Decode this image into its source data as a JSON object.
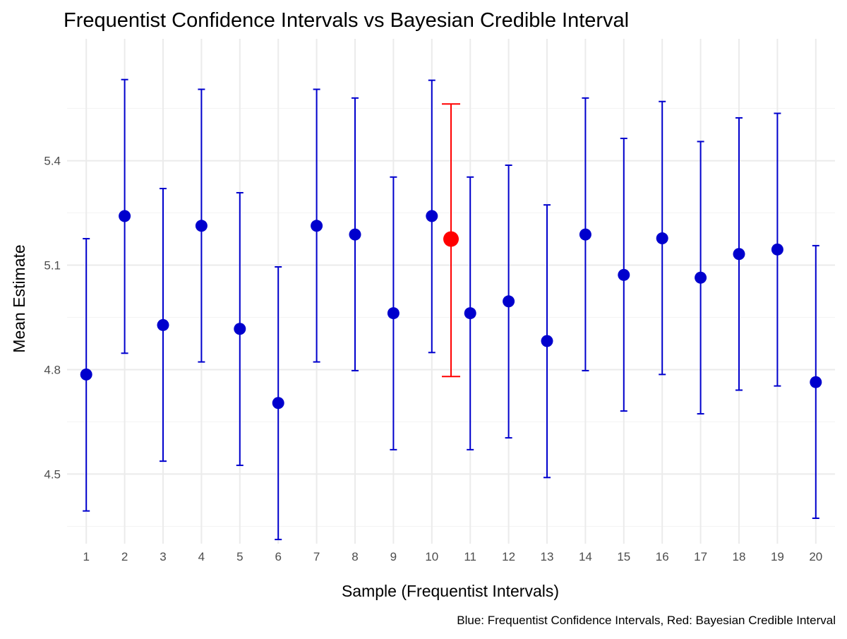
{
  "chart_data": {
    "type": "scatter",
    "title": "Frequentist Confidence Intervals vs Bayesian Credible Interval",
    "xlabel": "Sample (Frequentist Intervals)",
    "ylabel": "Mean Estimate",
    "caption": "Blue: Frequentist Confidence Intervals, Red: Bayesian Credible Interval",
    "xlim": [
      0.5,
      20.5
    ],
    "ylim": [
      4.3,
      5.75
    ],
    "x_ticks": [
      1,
      2,
      3,
      4,
      5,
      6,
      7,
      8,
      9,
      10,
      11,
      12,
      13,
      14,
      15,
      16,
      17,
      18,
      19,
      20
    ],
    "y_ticks": [
      4.5,
      4.8,
      5.1,
      5.4
    ],
    "grid": true,
    "series": [
      {
        "color": "#0000cd",
        "points": [
          {
            "x": 1,
            "y": 4.786,
            "lower": 4.394,
            "upper": 5.176
          },
          {
            "x": 2,
            "y": 5.241,
            "lower": 4.847,
            "upper": 5.633
          },
          {
            "x": 3,
            "y": 4.928,
            "lower": 4.537,
            "upper": 5.32
          },
          {
            "x": 4,
            "y": 5.213,
            "lower": 4.822,
            "upper": 5.605
          },
          {
            "x": 5,
            "y": 4.917,
            "lower": 4.525,
            "upper": 5.308
          },
          {
            "x": 6,
            "y": 4.704,
            "lower": 4.312,
            "upper": 5.095
          },
          {
            "x": 7,
            "y": 5.213,
            "lower": 4.822,
            "upper": 5.605
          },
          {
            "x": 8,
            "y": 5.188,
            "lower": 4.797,
            "upper": 5.58
          },
          {
            "x": 9,
            "y": 4.962,
            "lower": 4.57,
            "upper": 5.353
          },
          {
            "x": 10,
            "y": 5.241,
            "lower": 4.849,
            "upper": 5.631
          },
          {
            "x": 11,
            "y": 4.962,
            "lower": 4.57,
            "upper": 5.353
          },
          {
            "x": 12,
            "y": 4.996,
            "lower": 4.604,
            "upper": 5.387
          },
          {
            "x": 13,
            "y": 4.882,
            "lower": 4.49,
            "upper": 5.273
          },
          {
            "x": 14,
            "y": 5.188,
            "lower": 4.797,
            "upper": 5.58
          },
          {
            "x": 15,
            "y": 5.072,
            "lower": 4.681,
            "upper": 5.464
          },
          {
            "x": 16,
            "y": 5.177,
            "lower": 4.786,
            "upper": 5.57
          },
          {
            "x": 17,
            "y": 5.064,
            "lower": 4.673,
            "upper": 5.455
          },
          {
            "x": 18,
            "y": 5.132,
            "lower": 4.741,
            "upper": 5.523
          },
          {
            "x": 19,
            "y": 5.145,
            "lower": 4.753,
            "upper": 5.536
          }
        ]
      },
      {
        "color": "#0000cd",
        "points": [
          {
            "x": 20,
            "y": 4.764,
            "lower": 4.373,
            "upper": 5.156
          }
        ]
      },
      {
        "color": "#ff0000",
        "points": [
          {
            "x": 10.5,
            "y": 5.175,
            "lower": 4.78,
            "upper": 5.563
          }
        ]
      }
    ]
  }
}
